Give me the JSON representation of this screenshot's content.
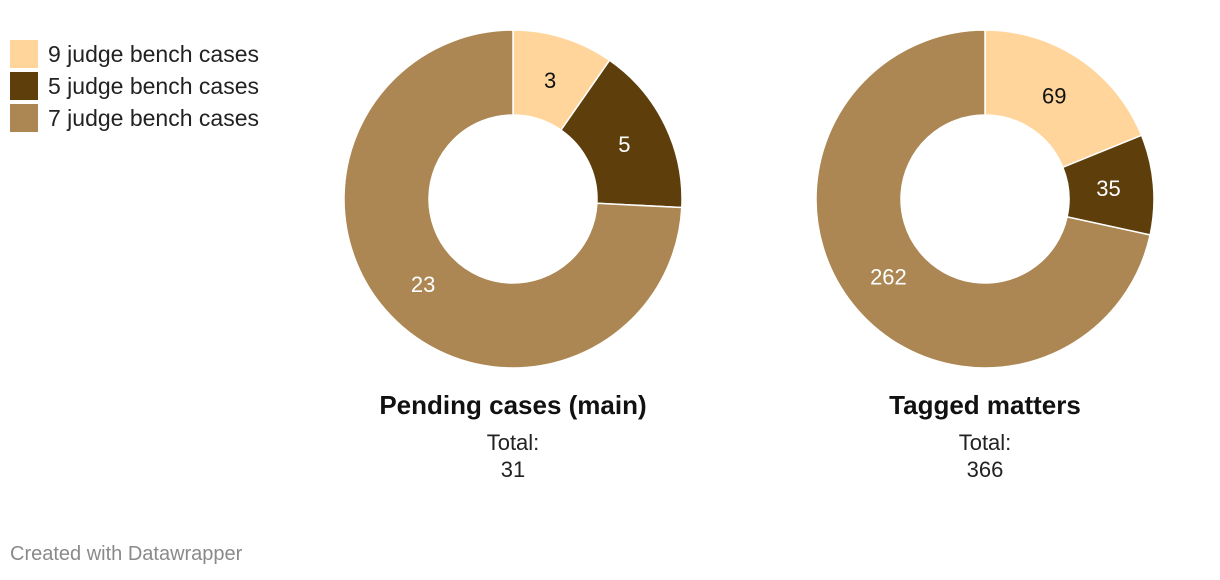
{
  "legend": [
    {
      "label": "9 judge bench cases",
      "color": "#FFD59B"
    },
    {
      "label": "5 judge bench cases",
      "color": "#5E3F0C"
    },
    {
      "label": "7 judge bench cases",
      "color": "#AC8753"
    }
  ],
  "chart_data": [
    {
      "type": "pie",
      "subtype": "donut",
      "title": "Pending cases (main)",
      "total_label": "Total:",
      "total_value": "31",
      "categories": [
        "9 judge bench cases",
        "5 judge bench cases",
        "7 judge bench cases"
      ],
      "values": [
        3,
        5,
        23
      ],
      "colors": [
        "#FFD59B",
        "#5E3F0C",
        "#AC8753"
      ],
      "label_colors": [
        "#111111",
        "#ffffff",
        "#ffffff"
      ]
    },
    {
      "type": "pie",
      "subtype": "donut",
      "title": "Tagged matters",
      "total_label": "Total:",
      "total_value": "366",
      "categories": [
        "9 judge bench cases",
        "5 judge bench cases",
        "7 judge bench cases"
      ],
      "values": [
        69,
        35,
        262
      ],
      "colors": [
        "#FFD59B",
        "#5E3F0C",
        "#AC8753"
      ],
      "label_colors": [
        "#111111",
        "#ffffff",
        "#ffffff"
      ]
    }
  ],
  "footer": {
    "credit": "Created with Datawrapper"
  }
}
